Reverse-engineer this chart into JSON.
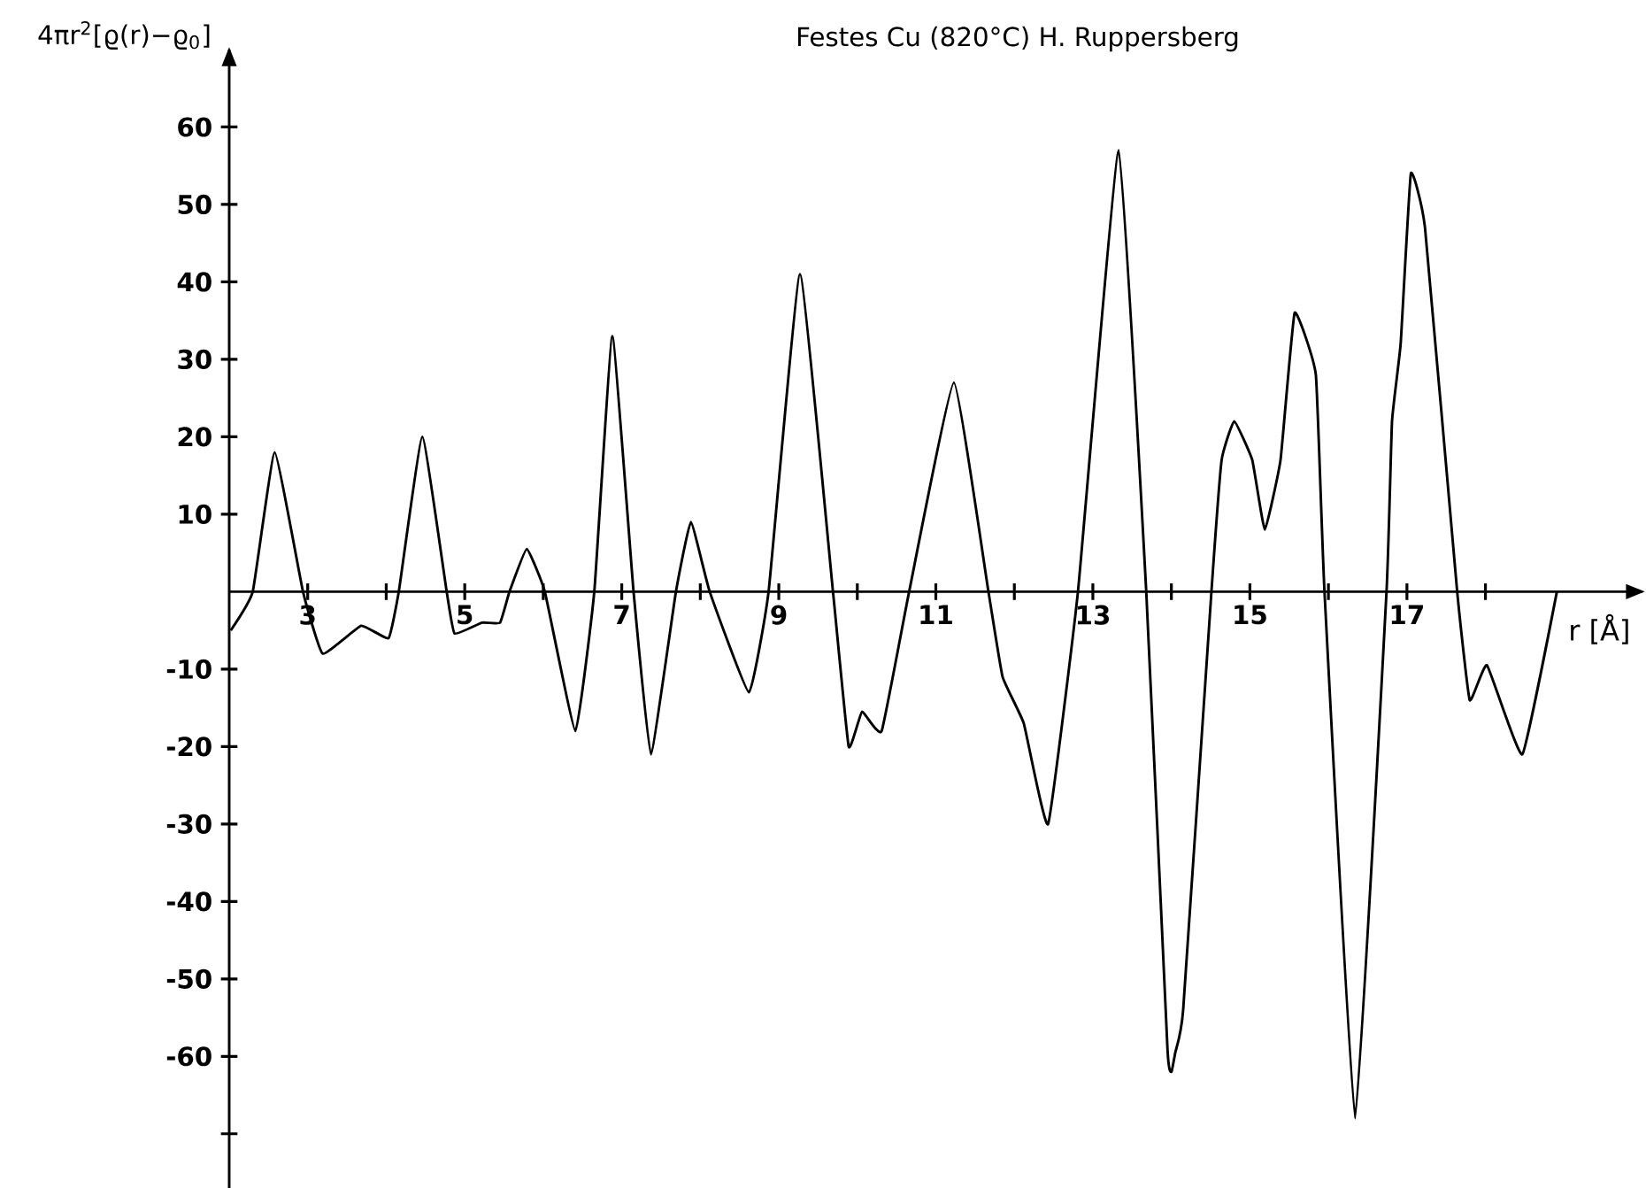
{
  "chart_data": {
    "type": "line",
    "title": "Festes Cu (820°C) H. Ruppersberg",
    "xlabel": "r [Å]",
    "ylabel": "4πr$^{2}$[ϱ(r)−ϱ$_{0}$]",
    "x": [
      2.02,
      2.3,
      2.58,
      2.94,
      3.19,
      3.68,
      4.03,
      4.16,
      4.46,
      4.77,
      4.87,
      5.22,
      5.45,
      5.57,
      5.79,
      6.02,
      6.41,
      6.65,
      6.88,
      7.15,
      7.37,
      7.69,
      7.88,
      8.12,
      8.62,
      8.87,
      9.27,
      9.69,
      9.89,
      10.06,
      10.31,
      10.66,
      11.23,
      11.67,
      11.85,
      12.12,
      12.43,
      12.81,
      13.33,
      13.68,
      13.95,
      14.0,
      14.05,
      14.15,
      14.51,
      14.64,
      14.8,
      15.03,
      15.19,
      15.39,
      15.57,
      15.84,
      15.95,
      16.34,
      16.74,
      16.81,
      16.92,
      17.05,
      17.23,
      17.64,
      17.8,
      18.02,
      18.47,
      18.91
    ],
    "values": [
      -5,
      0,
      18,
      0,
      -8,
      -4.4,
      -6,
      0,
      20,
      0,
      -5.4,
      -4,
      -4,
      0,
      5.5,
      0,
      -18,
      0,
      33,
      0,
      -21,
      0,
      9,
      0,
      -13,
      0,
      41,
      0,
      -20,
      -15.5,
      -18,
      0,
      27,
      0,
      -11,
      -17,
      -30,
      0,
      57,
      0,
      -59,
      -62,
      -59.5,
      -54,
      0,
      17,
      22,
      17,
      8,
      17,
      36,
      28,
      0,
      -68,
      0,
      22,
      32,
      54,
      47,
      0,
      -14,
      -9.5,
      -21,
      0
    ],
    "color": "#000000",
    "marker": "none",
    "line_style": "solid",
    "xlim": [
      2,
      20
    ],
    "ylim": [
      -77,
      70
    ],
    "xticks": [
      3,
      {
        "value": 4,
        "label": null
      },
      5,
      {
        "value": 6,
        "label": null
      },
      7,
      {
        "value": 8,
        "label": null
      },
      9,
      {
        "value": 10,
        "label": null
      },
      11,
      {
        "value": 12,
        "label": null
      },
      13,
      {
        "value": 14,
        "label": null
      },
      15,
      {
        "value": 16,
        "label": null
      },
      17,
      {
        "value": 18,
        "label": null
      }
    ],
    "yticks": [
      {
        "value": -70,
        "label": null
      },
      -60,
      -50,
      -40,
      -30,
      -20,
      -10,
      10,
      20,
      30,
      40,
      50,
      60
    ]
  }
}
